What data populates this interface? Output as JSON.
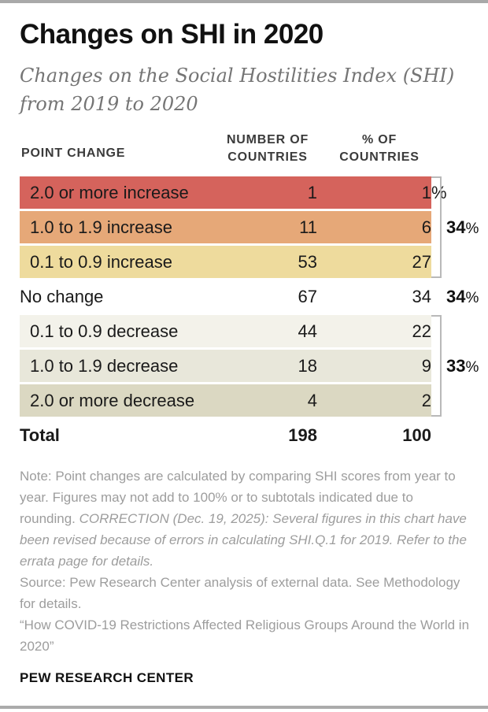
{
  "header": {
    "title": "Changes on SHI in 2020",
    "subtitle": "Changes on the Social Hostilities Index (SHI) from 2019 to 2020"
  },
  "table": {
    "columns": {
      "col1": "POINT CHANGE",
      "col2": "NUMBER OF COUNTRIES",
      "col3": "% OF COUNTRIES"
    },
    "rows": [
      {
        "label": "2.0 or more increase",
        "countries": "1",
        "pct": "1",
        "pct_suffix": "%",
        "color": "#d5635c"
      },
      {
        "label": "1.0 to 1.9 increase",
        "countries": "11",
        "pct": "6",
        "pct_suffix": "",
        "color": "#e6a878"
      },
      {
        "label": "0.1 to 0.9 increase",
        "countries": "53",
        "pct": "27",
        "pct_suffix": "",
        "color": "#eedb9d"
      },
      {
        "label": "No change",
        "countries": "67",
        "pct": "34",
        "pct_suffix": "",
        "color": ""
      },
      {
        "label": "0.1 to 0.9 decrease",
        "countries": "44",
        "pct": "22",
        "pct_suffix": "",
        "color": "#f3f2ea"
      },
      {
        "label": "1.0 to 1.9 decrease",
        "countries": "18",
        "pct": "9",
        "pct_suffix": "",
        "color": "#e8e7da"
      },
      {
        "label": "2.0 or more decrease",
        "countries": "4",
        "pct": "2",
        "pct_suffix": "",
        "color": "#dbd8c2"
      }
    ],
    "total": {
      "label": "Total",
      "countries": "198",
      "pct": "100"
    },
    "brackets": [
      {
        "value": "34",
        "suffix": "%"
      },
      {
        "value": "34",
        "suffix": "%"
      },
      {
        "value": "33",
        "suffix": "%"
      }
    ],
    "bracket_color": "#b9b9b9"
  },
  "footer": {
    "note_prefix": "Note: Point changes are calculated by comparing SHI scores from year to year. Figures may not add to 100% or to subtotals indicated due to rounding. ",
    "note_correction": "CORRECTION (Dec. 19, 2025): Several figures in this chart have been revised because of errors in calculating SHI.Q.1 for 2019. Refer to the errata page for details.",
    "source": "Source: Pew Research Center analysis of external data. See Methodology for details.",
    "quote": "“How COVID-19 Restrictions Affected Religious Groups Around the World in 2020”",
    "brand": "PEW RESEARCH CENTER"
  },
  "chart_data": {
    "type": "table",
    "title": "Changes on SHI in 2020",
    "subtitle": "Changes on the Social Hostilities Index (SHI) from 2019 to 2020",
    "columns": [
      "Point change",
      "Number of countries",
      "% of countries"
    ],
    "categories": [
      "2.0 or more increase",
      "1.0 to 1.9 increase",
      "0.1 to 0.9 increase",
      "No change",
      "0.1 to 0.9 decrease",
      "1.0 to 1.9 decrease",
      "2.0 or more decrease",
      "Total"
    ],
    "series": [
      {
        "name": "Number of countries",
        "values": [
          1,
          11,
          53,
          67,
          44,
          18,
          4,
          198
        ]
      },
      {
        "name": "% of countries",
        "values": [
          1,
          6,
          27,
          34,
          22,
          9,
          2,
          100
        ]
      }
    ],
    "group_annotations": [
      {
        "group": "increase rows (top 3)",
        "value": "34%"
      },
      {
        "group": "no change",
        "value": "34%"
      },
      {
        "group": "decrease rows (bottom 3)",
        "value": "33%"
      }
    ],
    "row_colors": [
      "#d5635c",
      "#e6a878",
      "#eedb9d",
      "#ffffff",
      "#f3f2ea",
      "#e8e7da",
      "#dbd8c2",
      "#ffffff"
    ]
  }
}
